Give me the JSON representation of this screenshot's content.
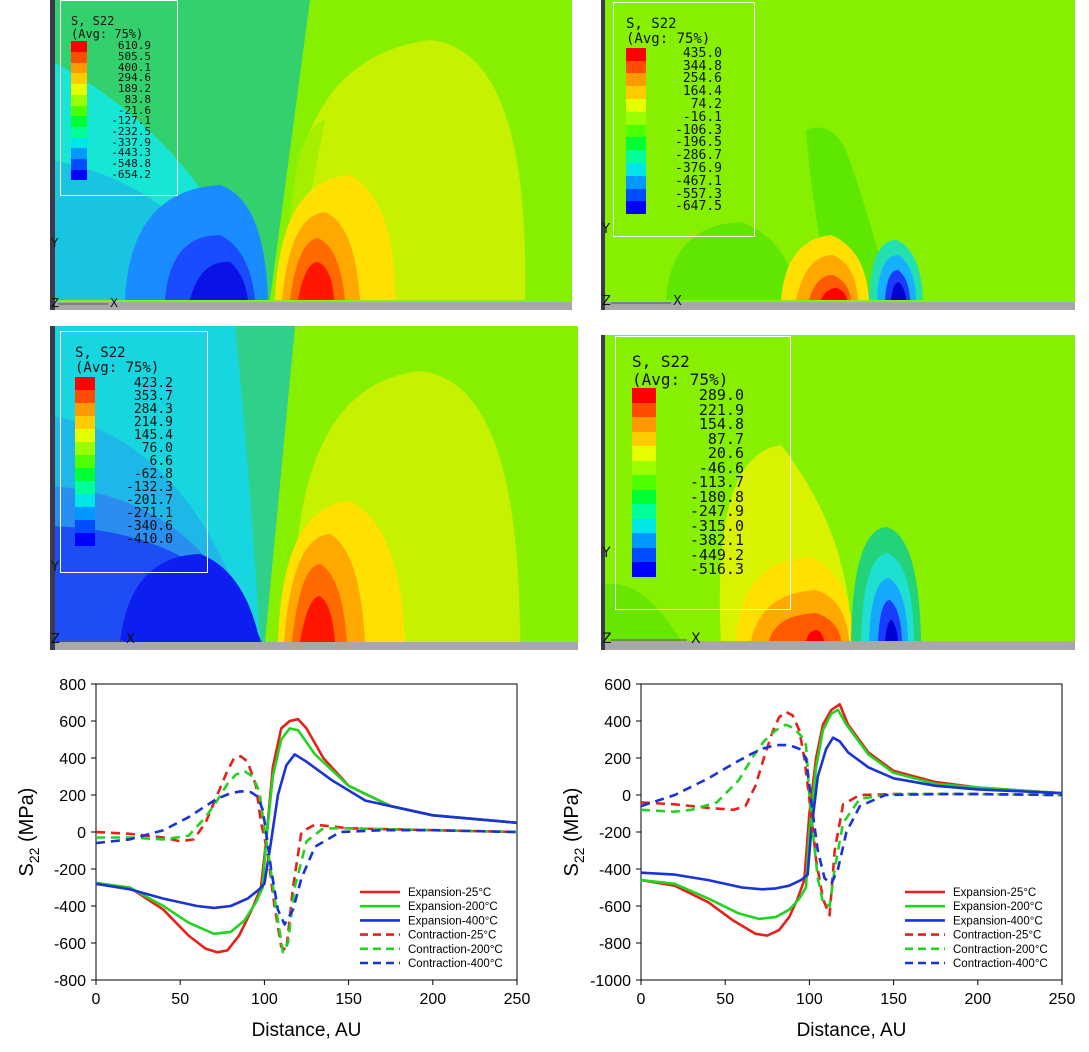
{
  "contour_panels": [
    {
      "legend_title_1": "S, S22",
      "legend_title_2": "(Avg: 75%)",
      "legend_values": [
        "610.9",
        "505.5",
        "400.1",
        "294.6",
        "189.2",
        "83.8",
        "-21.6",
        "-127.1",
        "-232.5",
        "-337.9",
        "-443.3",
        "-548.8",
        "-654.2"
      ],
      "axis_y": "Y",
      "axis_z": "Z",
      "axis_x": "X"
    },
    {
      "legend_title_1": "S, S22",
      "legend_title_2": "(Avg: 75%)",
      "legend_values": [
        "435.0",
        "344.8",
        "254.6",
        "164.4",
        "74.2",
        "-16.1",
        "-106.3",
        "-196.5",
        "-286.7",
        "-376.9",
        "-467.1",
        "-557.3",
        "-647.5"
      ],
      "axis_y": "Y",
      "axis_z": "Z",
      "axis_x": "X"
    },
    {
      "legend_title_1": "S, S22",
      "legend_title_2": "(Avg: 75%)",
      "legend_values": [
        "423.2",
        "353.7",
        "284.3",
        "214.9",
        "145.4",
        "76.0",
        "6.6",
        "-62.8",
        "-132.3",
        "-201.7",
        "-271.1",
        "-340.6",
        "-410.0"
      ],
      "axis_y": "Y",
      "axis_z": "Z",
      "axis_x": "X"
    },
    {
      "legend_title_1": "S, S22",
      "legend_title_2": "(Avg: 75%)",
      "legend_values": [
        "289.0",
        "221.9",
        "154.8",
        "87.7",
        "20.6",
        "-46.6",
        "-113.7",
        "-180.8",
        "-247.9",
        "-315.0",
        "-382.1",
        "-449.2",
        "-516.3"
      ],
      "axis_y": "Y",
      "axis_z": "Z",
      "axis_x": "X"
    }
  ],
  "legend_colors": [
    "#ff0000",
    "#ff4d00",
    "#ff9900",
    "#ffcc00",
    "#e6ff00",
    "#99ff00",
    "#4dff00",
    "#00ff33",
    "#00ff99",
    "#00e6e6",
    "#0099ff",
    "#004dff",
    "#0000ff"
  ],
  "chart_data": [
    {
      "type": "line",
      "xlabel": "Distance, AU",
      "ylabel_main": "S",
      "ylabel_sub": "22",
      "ylabel_unit": " (MPa)",
      "xlim": [
        0,
        250
      ],
      "ylim": [
        -800,
        800
      ],
      "xticks": [
        0,
        50,
        100,
        150,
        200,
        250
      ],
      "yticks": [
        -800,
        -600,
        -400,
        -200,
        0,
        200,
        400,
        600,
        800
      ],
      "legend_position": "lower-right",
      "series": [
        {
          "name": "Expansion-25°C",
          "color": "#e8201a",
          "dash": false,
          "x": [
            0,
            20,
            40,
            55,
            65,
            72,
            78,
            85,
            92,
            98,
            101,
            105,
            110,
            115,
            120,
            125,
            135,
            150,
            175,
            200,
            250
          ],
          "y": [
            -280,
            -300,
            -420,
            -560,
            -630,
            -650,
            -640,
            -560,
            -430,
            -300,
            -50,
            350,
            560,
            600,
            610,
            560,
            400,
            250,
            140,
            90,
            50
          ]
        },
        {
          "name": "Expansion-200°C",
          "color": "#22d322",
          "dash": false,
          "x": [
            0,
            20,
            40,
            55,
            70,
            80,
            88,
            95,
            99,
            101,
            105,
            110,
            115,
            120,
            130,
            150,
            175,
            200,
            250
          ],
          "y": [
            -275,
            -300,
            -400,
            -490,
            -550,
            -540,
            -480,
            -380,
            -300,
            -50,
            300,
            500,
            560,
            550,
            420,
            250,
            140,
            90,
            50
          ]
        },
        {
          "name": "Expansion-400°C",
          "color": "#1a33d6",
          "dash": false,
          "x": [
            0,
            20,
            40,
            60,
            70,
            80,
            90,
            97,
            100,
            104,
            108,
            113,
            118,
            125,
            140,
            160,
            200,
            250
          ],
          "y": [
            -280,
            -310,
            -360,
            -400,
            -410,
            -400,
            -360,
            -310,
            -280,
            -50,
            200,
            360,
            420,
            380,
            280,
            170,
            90,
            50
          ]
        },
        {
          "name": "Contraction-25°C",
          "color": "#e8201a",
          "dash": true,
          "x": [
            0,
            20,
            40,
            50,
            58,
            65,
            72,
            78,
            82,
            86,
            90,
            95,
            98,
            100,
            102,
            106,
            110,
            113,
            117,
            122,
            130,
            150,
            200,
            250
          ],
          "y": [
            0,
            -10,
            -30,
            -50,
            -40,
            50,
            200,
            330,
            400,
            410,
            380,
            250,
            50,
            -30,
            -120,
            -400,
            -620,
            -640,
            -300,
            0,
            40,
            20,
            10,
            0
          ]
        },
        {
          "name": "Contraction-200°C",
          "color": "#22d322",
          "dash": true,
          "x": [
            0,
            20,
            40,
            55,
            65,
            72,
            78,
            83,
            88,
            93,
            97,
            100,
            103,
            107,
            111,
            114,
            118,
            125,
            135,
            150,
            200,
            250
          ],
          "y": [
            -30,
            -30,
            -40,
            -20,
            80,
            170,
            260,
            310,
            330,
            300,
            220,
            20,
            -160,
            -420,
            -650,
            -600,
            -300,
            -50,
            20,
            20,
            10,
            0
          ]
        },
        {
          "name": "Contraction-400°C",
          "color": "#1a33d6",
          "dash": true,
          "x": [
            0,
            20,
            40,
            55,
            65,
            72,
            80,
            86,
            92,
            96,
            99,
            101,
            104,
            108,
            112,
            117,
            122,
            130,
            145,
            170,
            200,
            250
          ],
          "y": [
            -60,
            -40,
            10,
            80,
            140,
            180,
            210,
            220,
            215,
            190,
            120,
            0,
            -200,
            -420,
            -500,
            -420,
            -250,
            -80,
            0,
            10,
            10,
            0
          ]
        }
      ]
    },
    {
      "type": "line",
      "xlabel": "Distance, AU",
      "ylabel_main": "S",
      "ylabel_sub": "22",
      "ylabel_unit": " (MPa)",
      "xlim": [
        0,
        250
      ],
      "ylim": [
        -1000,
        600
      ],
      "xticks": [
        0,
        50,
        100,
        150,
        200,
        250
      ],
      "yticks": [
        -1000,
        -800,
        -600,
        -400,
        -200,
        0,
        200,
        400,
        600
      ],
      "legend_position": "lower-right",
      "series": [
        {
          "name": "Expansion-25°C",
          "color": "#e8201a",
          "dash": false,
          "x": [
            0,
            20,
            40,
            55,
            68,
            75,
            82,
            88,
            93,
            97,
            100,
            104,
            108,
            113,
            118,
            123,
            135,
            150,
            175,
            200,
            250
          ],
          "y": [
            -460,
            -490,
            -580,
            -680,
            -750,
            -760,
            -730,
            -660,
            -560,
            -460,
            -100,
            200,
            380,
            460,
            490,
            380,
            230,
            130,
            70,
            40,
            10
          ]
        },
        {
          "name": "Expansion-200°C",
          "color": "#22d322",
          "dash": false,
          "x": [
            0,
            20,
            40,
            58,
            70,
            80,
            88,
            94,
            98,
            100,
            104,
            108,
            113,
            117,
            122,
            135,
            150,
            175,
            200,
            250
          ],
          "y": [
            -460,
            -480,
            -560,
            -640,
            -670,
            -660,
            -620,
            -560,
            -500,
            -200,
            150,
            350,
            440,
            460,
            380,
            220,
            120,
            60,
            40,
            10
          ]
        },
        {
          "name": "Expansion-400°C",
          "color": "#1a33d6",
          "dash": false,
          "x": [
            0,
            20,
            40,
            60,
            72,
            80,
            88,
            95,
            99,
            101,
            105,
            110,
            114,
            118,
            123,
            135,
            150,
            175,
            200,
            250
          ],
          "y": [
            -420,
            -430,
            -460,
            -500,
            -510,
            -505,
            -490,
            -460,
            -430,
            -200,
            100,
            250,
            310,
            290,
            230,
            150,
            90,
            50,
            30,
            10
          ]
        },
        {
          "name": "Contraction-25°C",
          "color": "#e8201a",
          "dash": true,
          "x": [
            0,
            20,
            40,
            55,
            62,
            68,
            73,
            78,
            82,
            86,
            90,
            94,
            97,
            99,
            101,
            104,
            108,
            112,
            115,
            120,
            130,
            150,
            200,
            250
          ],
          "y": [
            -40,
            -50,
            -70,
            -80,
            -60,
            50,
            200,
            340,
            420,
            450,
            430,
            350,
            200,
            50,
            -100,
            -350,
            -560,
            -650,
            -300,
            -50,
            0,
            5,
            5,
            0
          ]
        },
        {
          "name": "Contraction-200°C",
          "color": "#22d322",
          "dash": true,
          "x": [
            0,
            20,
            30,
            45,
            58,
            66,
            73,
            80,
            86,
            91,
            95,
            98,
            100,
            102,
            105,
            108,
            112,
            115,
            120,
            130,
            150,
            200,
            250
          ],
          "y": [
            -80,
            -90,
            -80,
            -40,
            80,
            200,
            290,
            350,
            380,
            360,
            320,
            270,
            0,
            -200,
            -450,
            -580,
            -600,
            -400,
            -150,
            -20,
            5,
            5,
            0
          ]
        },
        {
          "name": "Contraction-400°C",
          "color": "#1a33d6",
          "dash": true,
          "x": [
            0,
            20,
            40,
            55,
            65,
            72,
            80,
            88,
            94,
            98,
            100,
            102,
            105,
            109,
            113,
            117,
            122,
            130,
            145,
            175,
            200,
            250
          ],
          "y": [
            -60,
            0,
            90,
            170,
            220,
            250,
            270,
            270,
            250,
            200,
            50,
            -100,
            -300,
            -450,
            -480,
            -400,
            -200,
            -60,
            0,
            5,
            5,
            0
          ]
        }
      ]
    }
  ]
}
